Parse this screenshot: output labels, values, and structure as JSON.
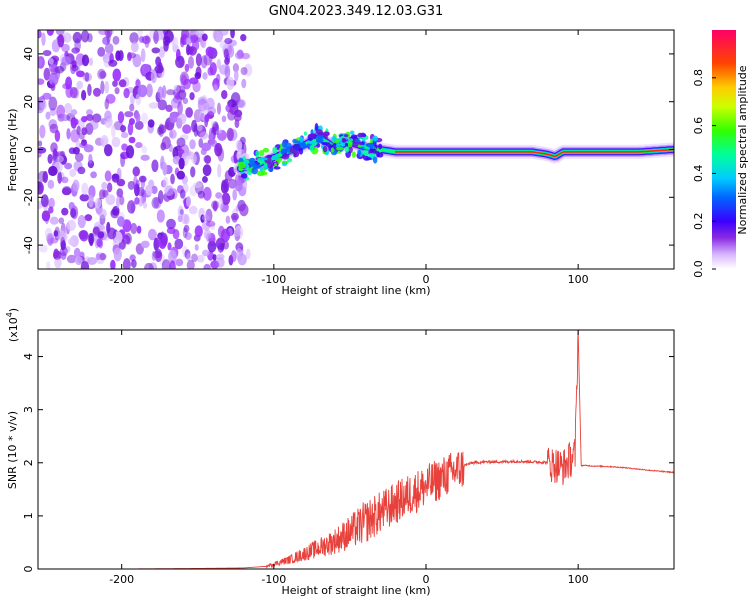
{
  "title": "GN04.2023.349.12.03.G31",
  "colors": {
    "snr_line": "#e8403a",
    "axis": "#000000"
  },
  "chart_data": [
    {
      "type": "heatmap",
      "xlabel": "Height of straight line (km)",
      "ylabel": "Frequency (Hz)",
      "xlim": [
        -255,
        163
      ],
      "ylim": [
        -50,
        50
      ],
      "x_ticks": [
        -200,
        -100,
        0,
        100
      ],
      "y_ticks": [
        -40,
        -20,
        0,
        20,
        40
      ],
      "colorbar": {
        "label": "Normalized spectral amplitude",
        "range": [
          0,
          1
        ],
        "ticks": [
          0.0,
          0.2,
          0.4,
          0.6,
          0.8
        ]
      },
      "signal_ridge": {
        "x": [
          -122,
          -110,
          -95,
          -80,
          -70,
          -60,
          -50,
          -40,
          -30,
          -20,
          -10,
          0,
          20,
          40,
          60,
          70,
          80,
          85,
          90,
          100,
          120,
          140,
          163
        ],
        "y": [
          -8,
          -6,
          -2,
          2,
          5,
          1,
          3,
          1,
          0,
          -1,
          -1,
          -1,
          -1,
          -1,
          -1,
          -1,
          -2,
          -3,
          -1,
          -1,
          -1,
          -1,
          0
        ]
      },
      "noise_region_x": [
        -255,
        -122
      ]
    },
    {
      "type": "line",
      "xlabel": "Height of straight line (km)",
      "ylabel": "SNR (10 * v/v)",
      "y_multiplier": "(x10",
      "y_multiplier_exp": "4",
      "y_multiplier_close": ")",
      "xlim": [
        -255,
        163
      ],
      "ylim": [
        0,
        4.5
      ],
      "x_ticks": [
        -200,
        -100,
        0,
        100
      ],
      "y_ticks": [
        0,
        1,
        2,
        3,
        4
      ],
      "series": [
        {
          "x": [
            -255,
            -200,
            -150,
            -120,
            -105,
            -100,
            -90,
            -80,
            -70,
            -60,
            -50,
            -40,
            -30,
            -20,
            -10,
            0,
            10,
            20,
            30,
            40,
            50,
            60,
            70,
            80,
            85,
            90,
            95,
            98,
            100,
            102,
            105,
            110,
            120,
            130,
            140,
            150,
            163
          ],
          "y": [
            0.0,
            0.0,
            0.01,
            0.02,
            0.05,
            0.1,
            0.18,
            0.3,
            0.42,
            0.55,
            0.72,
            0.92,
            1.1,
            1.28,
            1.45,
            1.6,
            1.75,
            1.9,
            2.0,
            2.02,
            2.02,
            2.03,
            2.02,
            2.01,
            2.0,
            1.95,
            2.1,
            2.2,
            4.5,
            1.95,
            1.95,
            1.94,
            1.93,
            1.91,
            1.88,
            1.85,
            1.82
          ]
        }
      ]
    }
  ]
}
